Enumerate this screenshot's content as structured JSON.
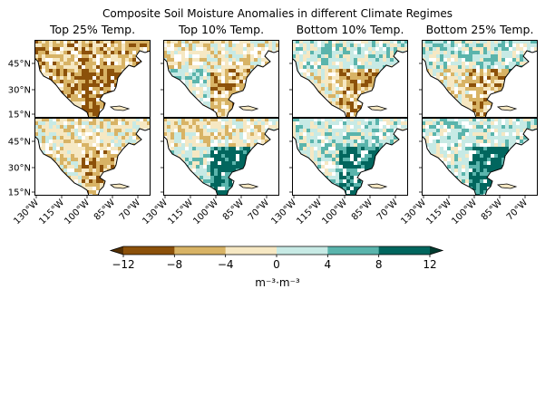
{
  "figure": {
    "title": "Composite Soil Moisture Anomalies in different Climate Regimes",
    "columns": [
      {
        "title": "Top 25% Temp."
      },
      {
        "title": "Top 10% Temp."
      },
      {
        "title": "Bottom 10% Temp."
      },
      {
        "title": "Bottom 25% Temp."
      }
    ],
    "lat_ticks": [
      "45°N",
      "30°N",
      "15°N"
    ],
    "lon_ticks": [
      "130°W",
      "115°W",
      "100°W",
      "85°W",
      "70°W"
    ]
  },
  "map_extent": {
    "lon_range": [
      -140,
      -60
    ],
    "lat_range": [
      10,
      60
    ]
  },
  "colorbar": {
    "label": "m⁻³·m⁻³",
    "ticks": [
      "−12",
      "−8",
      "−4",
      "0",
      "4",
      "8",
      "12"
    ],
    "colors": [
      "#8c510a",
      "#d8b365",
      "#f6e8c3",
      "#c7eae5",
      "#5ab4ac",
      "#01665e"
    ],
    "extend_low": "#543005",
    "extend_high": "#003c30"
  },
  "panel_colors": {
    "ocean": "#ffffff",
    "coast": "#000000",
    "dry_strong": "#8c510a",
    "dry": "#d8b365",
    "dry_light": "#f6e8c3",
    "wet_light": "#c7eae5",
    "wet": "#5ab4ac",
    "wet_strong": "#01665e"
  }
}
